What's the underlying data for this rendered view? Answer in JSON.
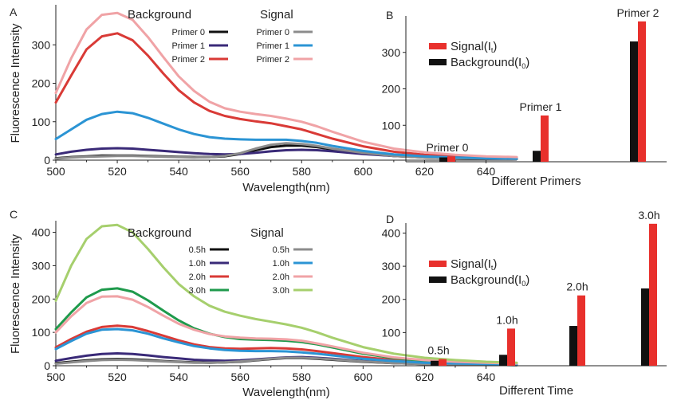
{
  "chart_data": [
    {
      "id": "A",
      "type": "line",
      "panel_label": "A",
      "xlabel": "Wavelength(nm)",
      "ylabel": "Fluorescence Intensity",
      "xlim": [
        500,
        650
      ],
      "ylim": [
        0,
        400
      ],
      "xticks": [
        "500",
        "520",
        "540",
        "560",
        "580",
        "600",
        "620",
        "640"
      ],
      "yticks": [
        "0",
        "100",
        "200",
        "300"
      ],
      "legend_titles": {
        "background": "Background",
        "signal": "Signal"
      },
      "x": [
        500,
        505,
        510,
        515,
        520,
        525,
        530,
        535,
        540,
        545,
        550,
        555,
        560,
        565,
        570,
        575,
        580,
        585,
        590,
        600,
        610,
        620,
        630,
        640,
        650
      ],
      "series": [
        {
          "name": "Primer 0",
          "group": "background",
          "color": "#111111",
          "values": [
            5,
            8,
            10,
            12,
            12,
            12,
            11,
            10,
            9,
            8,
            8,
            10,
            16,
            26,
            34,
            38,
            38,
            34,
            28,
            18,
            11,
            7,
            5,
            4,
            3
          ]
        },
        {
          "name": "Primer 1",
          "group": "background",
          "color": "#3a2a78",
          "values": [
            15,
            22,
            27,
            30,
            31,
            30,
            27,
            24,
            21,
            18,
            16,
            15,
            16,
            19,
            23,
            26,
            27,
            26,
            23,
            16,
            11,
            8,
            6,
            4,
            3
          ]
        },
        {
          "name": "Primer 2",
          "group": "background",
          "color": "#d93a36",
          "values": [
            150,
            220,
            288,
            322,
            330,
            312,
            272,
            225,
            182,
            150,
            128,
            115,
            107,
            101,
            96,
            88,
            80,
            68,
            56,
            36,
            22,
            14,
            10,
            7,
            6
          ]
        },
        {
          "name": "Primer 0",
          "group": "signal",
          "color": "#8c8c8c",
          "values": [
            4,
            7,
            9,
            10,
            11,
            11,
            10,
            9,
            8,
            7,
            8,
            11,
            18,
            30,
            40,
            44,
            42,
            37,
            30,
            19,
            11,
            7,
            5,
            4,
            3
          ]
        },
        {
          "name": "Primer 1",
          "group": "signal",
          "color": "#2b94d4",
          "values": [
            55,
            80,
            105,
            120,
            126,
            122,
            110,
            95,
            80,
            68,
            60,
            56,
            54,
            53,
            53,
            53,
            50,
            45,
            37,
            24,
            15,
            10,
            7,
            5,
            4
          ]
        },
        {
          "name": "Primer 2",
          "group": "signal",
          "color": "#f0a3a6",
          "values": [
            175,
            265,
            340,
            378,
            383,
            365,
            320,
            268,
            218,
            180,
            152,
            135,
            126,
            120,
            115,
            108,
            100,
            88,
            74,
            48,
            30,
            20,
            14,
            10,
            8
          ]
        }
      ]
    },
    {
      "id": "B",
      "type": "bar",
      "panel_label": "B",
      "xlabel": "Different Primers",
      "ylabel": "",
      "ylim": [
        0,
        400
      ],
      "yticks": [
        "100",
        "200",
        "300"
      ],
      "categories": [
        "Primer 0",
        "Primer 1",
        "Primer 2"
      ],
      "legend": [
        {
          "label": "Signal(I",
          "sub": "t",
          "after": ")",
          "color": "#e8302c"
        },
        {
          "label": "Background(I",
          "sub": "0",
          "after": ")",
          "color": "#111111"
        }
      ],
      "series": [
        {
          "name": "Background(I0)",
          "color": "#111111",
          "values": [
            12,
            30,
            330
          ]
        },
        {
          "name": "Signal(It)",
          "color": "#e8302c",
          "values": [
            15,
            127,
            385
          ]
        }
      ]
    },
    {
      "id": "C",
      "type": "line",
      "panel_label": "C",
      "xlabel": "Wavelength(nm)",
      "ylabel": "Fluorescence Intensity",
      "xlim": [
        500,
        650
      ],
      "ylim": [
        0,
        430
      ],
      "xticks": [
        "500",
        "520",
        "540",
        "560",
        "580",
        "600",
        "620",
        "640"
      ],
      "yticks": [
        "0",
        "100",
        "200",
        "300",
        "400"
      ],
      "legend_titles": {
        "background": "Background",
        "signal": "Signal"
      },
      "x": [
        500,
        505,
        510,
        515,
        520,
        525,
        530,
        535,
        540,
        545,
        550,
        555,
        560,
        565,
        570,
        575,
        580,
        585,
        590,
        600,
        610,
        620,
        630,
        640,
        650
      ],
      "series": [
        {
          "name": "0.5h",
          "group": "background",
          "color": "#111111",
          "values": [
            8,
            12,
            16,
            19,
            20,
            19,
            17,
            14,
            12,
            10,
            9,
            10,
            12,
            16,
            20,
            23,
            23,
            21,
            18,
            12,
            8,
            5,
            4,
            3,
            2
          ]
        },
        {
          "name": "1.0h",
          "group": "background",
          "color": "#3a2a78",
          "values": [
            15,
            23,
            30,
            35,
            37,
            35,
            31,
            26,
            22,
            18,
            16,
            15,
            16,
            19,
            22,
            25,
            26,
            24,
            21,
            14,
            9,
            6,
            5,
            4,
            3
          ]
        },
        {
          "name": "2.0h",
          "group": "background",
          "color": "#d93a36",
          "values": [
            55,
            80,
            102,
            116,
            120,
            116,
            104,
            90,
            76,
            64,
            56,
            52,
            51,
            52,
            53,
            52,
            49,
            44,
            38,
            26,
            17,
            11,
            8,
            6,
            5
          ]
        },
        {
          "name": "3.0h",
          "group": "background",
          "color": "#1f9a4c",
          "values": [
            110,
            160,
            205,
            228,
            232,
            222,
            196,
            165,
            136,
            112,
            96,
            86,
            80,
            78,
            77,
            75,
            71,
            64,
            55,
            36,
            23,
            15,
            11,
            8,
            6
          ]
        },
        {
          "name": "0.5h",
          "group": "signal",
          "color": "#8c8c8c",
          "values": [
            6,
            10,
            14,
            17,
            18,
            17,
            15,
            13,
            11,
            9,
            9,
            10,
            13,
            17,
            21,
            24,
            24,
            22,
            19,
            13,
            8,
            5,
            4,
            3,
            2
          ]
        },
        {
          "name": "1.0h",
          "group": "signal",
          "color": "#2b94d4",
          "values": [
            50,
            74,
            96,
            108,
            110,
            106,
            96,
            82,
            70,
            59,
            52,
            47,
            45,
            44,
            44,
            43,
            40,
            36,
            31,
            21,
            14,
            9,
            7,
            5,
            4
          ]
        },
        {
          "name": "2.0h",
          "group": "signal",
          "color": "#f0a3a6",
          "values": [
            100,
            148,
            188,
            207,
            208,
            198,
            176,
            150,
            126,
            108,
            95,
            88,
            84,
            82,
            81,
            79,
            75,
            67,
            58,
            39,
            25,
            17,
            12,
            9,
            7
          ]
        },
        {
          "name": "3.0h",
          "group": "signal",
          "color": "#a6cf6d",
          "values": [
            195,
            300,
            380,
            418,
            422,
            400,
            350,
            295,
            245,
            208,
            180,
            162,
            150,
            140,
            132,
            124,
            114,
            100,
            84,
            56,
            36,
            24,
            17,
            12,
            9
          ]
        }
      ]
    },
    {
      "id": "D",
      "type": "bar",
      "panel_label": "D",
      "xlabel": "Different Time",
      "ylabel": "",
      "ylim": [
        0,
        430
      ],
      "yticks": [
        "100",
        "200",
        "300",
        "400"
      ],
      "categories": [
        "0.5h",
        "1.0h",
        "2.0h",
        "3.0h"
      ],
      "legend": [
        {
          "label": "Signal(I",
          "sub": "t",
          "after": ")",
          "color": "#e8302c"
        },
        {
          "label": "Background(I",
          "sub": "0",
          "after": ")",
          "color": "#111111"
        }
      ],
      "series": [
        {
          "name": "Background(I0)",
          "color": "#111111",
          "values": [
            15,
            33,
            120,
            233
          ]
        },
        {
          "name": "Signal(It)",
          "color": "#e8302c",
          "values": [
            20,
            112,
            212,
            428
          ]
        }
      ]
    }
  ]
}
